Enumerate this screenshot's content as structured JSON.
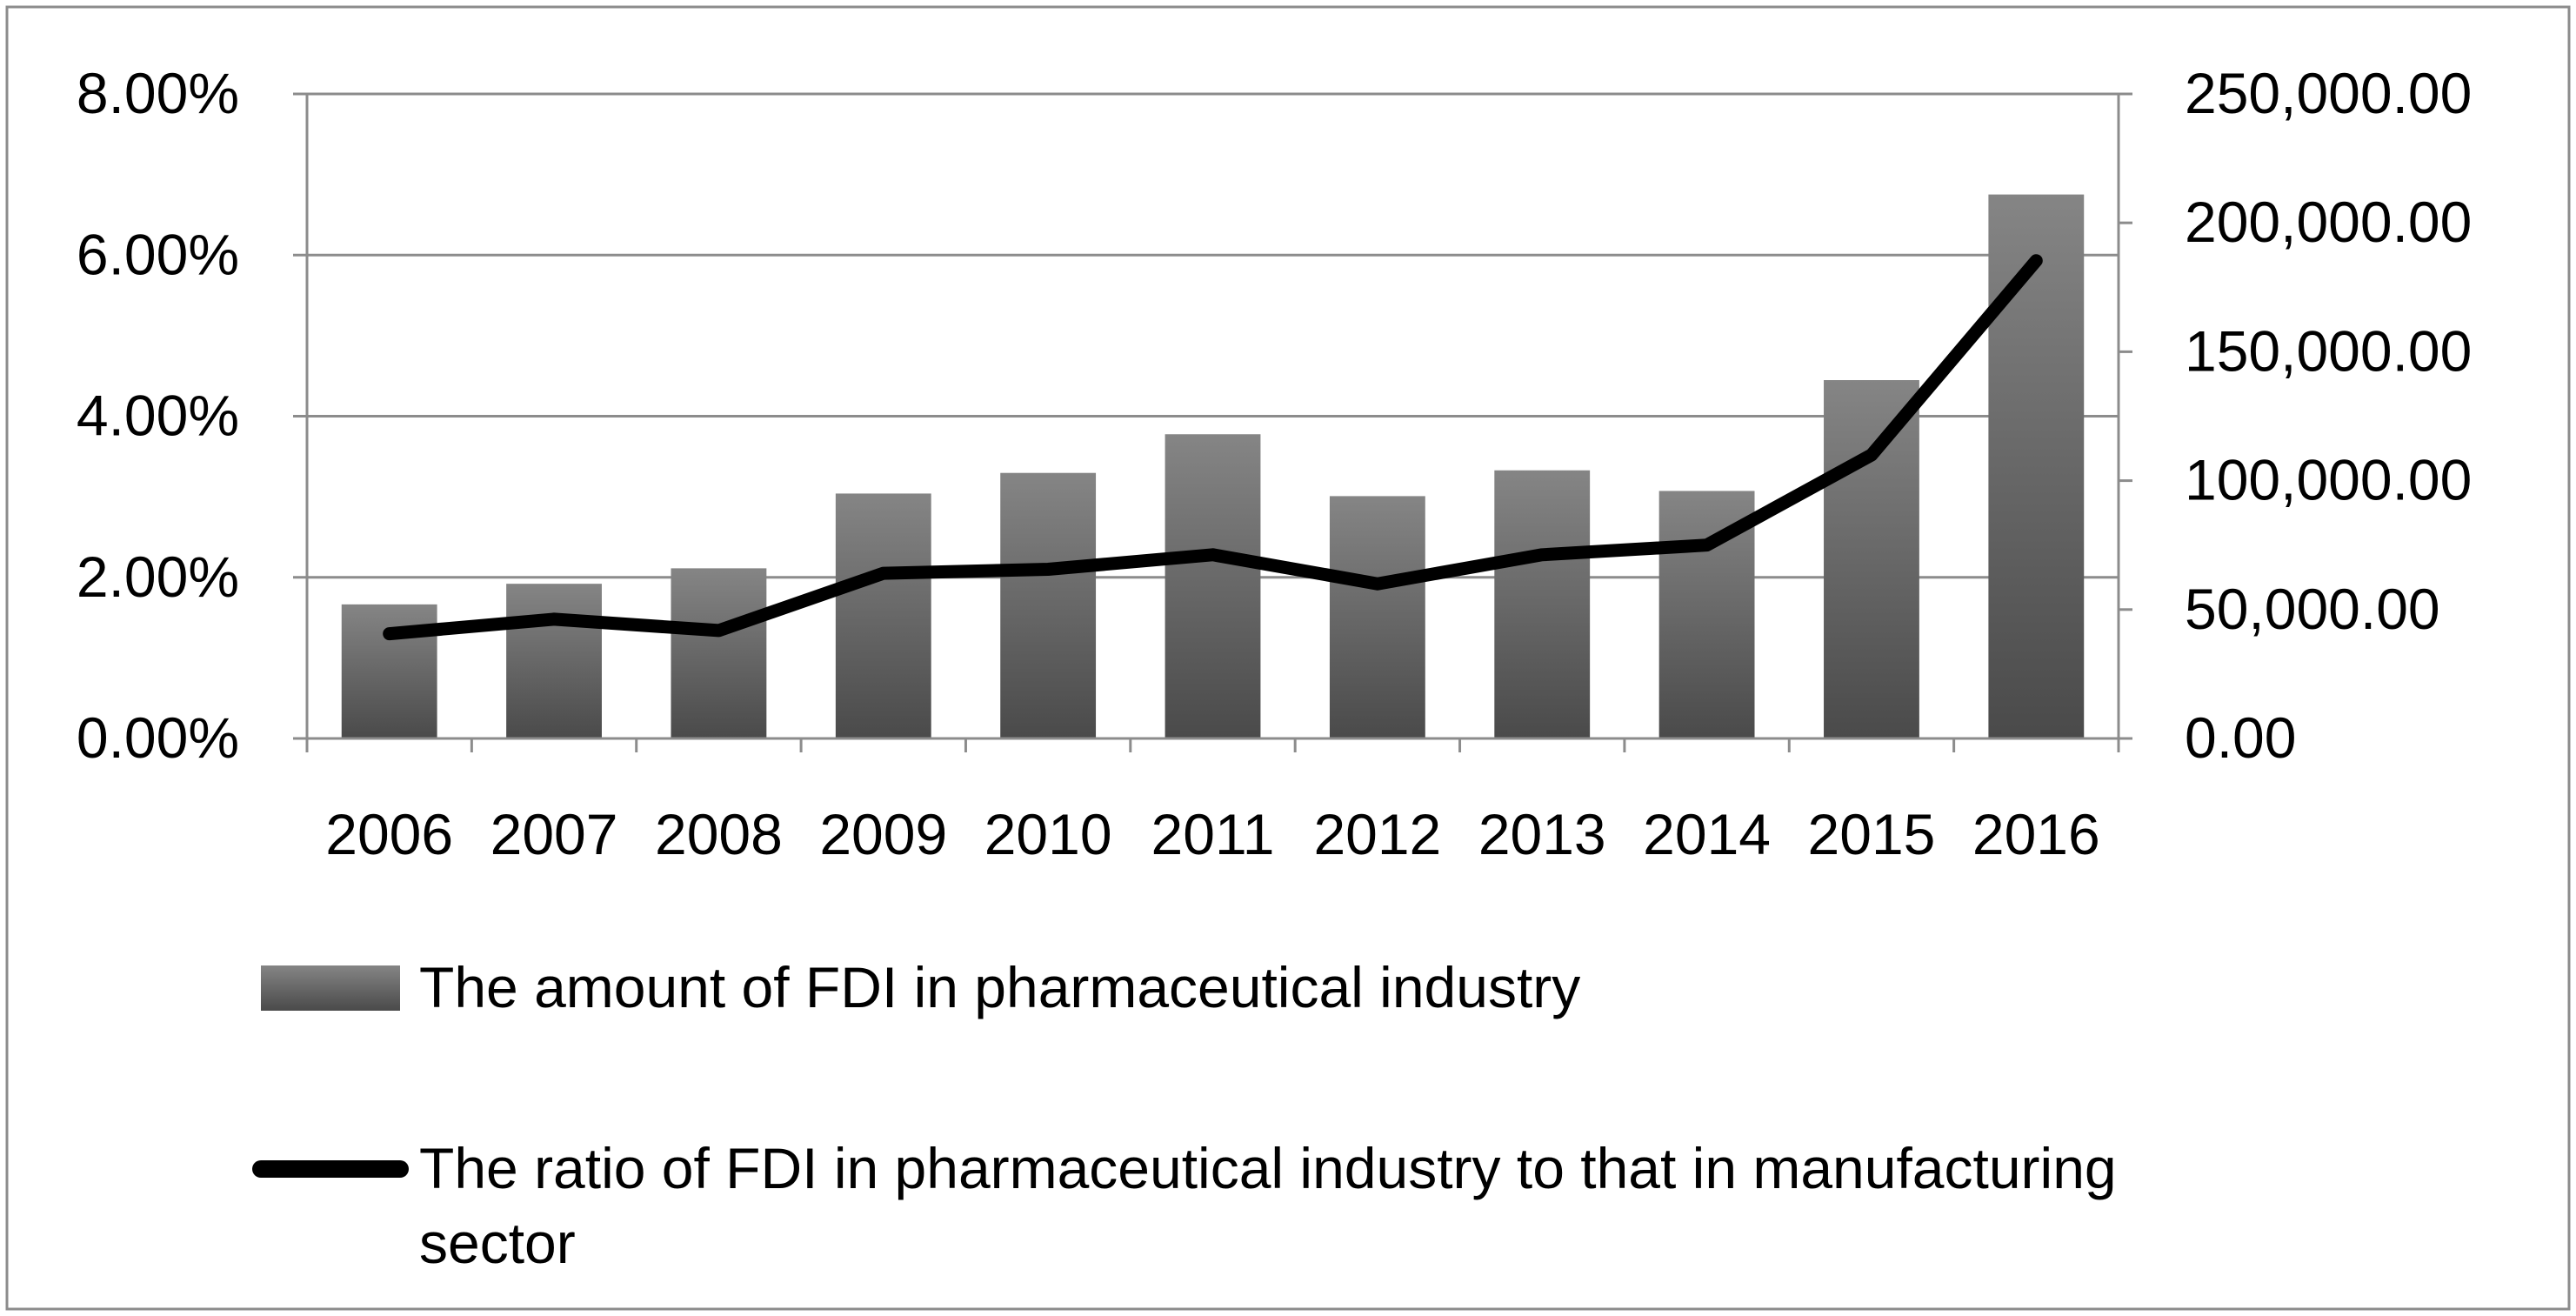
{
  "chart_data": {
    "type": "bar",
    "categories": [
      "2006",
      "2007",
      "2008",
      "2009",
      "2010",
      "2011",
      "2012",
      "2013",
      "2014",
      "2015",
      "2016"
    ],
    "series": [
      {
        "name": "The amount of FDI in pharmaceutical industry",
        "type": "bar",
        "axis": "right",
        "values": [
          52000,
          60000,
          66000,
          95000,
          103000,
          118000,
          94000,
          104000,
          96000,
          139000,
          211000
        ]
      },
      {
        "name": "The ratio of FDI in pharmaceutical industry to that in manufacturing sector",
        "type": "line",
        "axis": "left",
        "values": [
          1.3,
          1.48,
          1.34,
          2.05,
          2.1,
          2.28,
          1.92,
          2.28,
          2.4,
          3.52,
          5.93
        ]
      }
    ],
    "y_left": {
      "ylim": [
        0,
        8
      ],
      "ticks": [
        0,
        2,
        4,
        6,
        8
      ],
      "tick_labels": [
        "0.00%",
        "2.00%",
        "4.00%",
        "6.00%",
        "8.00%"
      ]
    },
    "y_right": {
      "ylim": [
        0,
        250000
      ],
      "ticks": [
        0,
        50000,
        100000,
        150000,
        200000,
        250000
      ],
      "tick_labels": [
        "0.00",
        "50,000.00",
        "100,000.00",
        "150,000.00",
        "200,000.00",
        "250,000.00"
      ]
    },
    "grid": "horizontal",
    "legend_position": "bottom",
    "colors": {
      "bar_top": "#858585",
      "bar_bottom": "#4a4a4a",
      "line": "#000000",
      "grid": "#8c8c8c",
      "frame": "#8c8c8c"
    }
  }
}
